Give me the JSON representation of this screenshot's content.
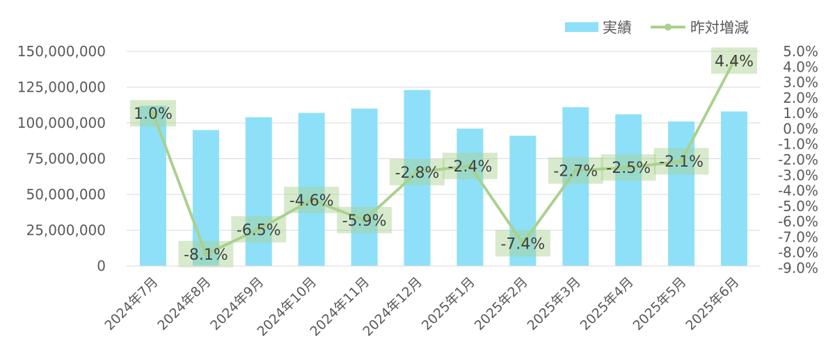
{
  "chart_data": {
    "type": "bar",
    "categories": [
      "2024年7月",
      "2024年8月",
      "2024年9月",
      "2024年10月",
      "2024年11月",
      "2024年12月",
      "2025年1月",
      "2025年2月",
      "2025年3月",
      "2025年4月",
      "2025年5月",
      "2025年6月"
    ],
    "series": [
      {
        "name": "実績",
        "type": "bar",
        "axis": "left",
        "values": [
          112000000,
          95000000,
          104000000,
          107000000,
          110000000,
          123000000,
          96000000,
          91000000,
          111000000,
          106000000,
          101000000,
          108000000
        ],
        "color": "#8EE0F8"
      },
      {
        "name": "昨対増減",
        "type": "line",
        "axis": "right",
        "values": [
          1.0,
          -8.1,
          -6.5,
          -4.6,
          -5.9,
          -2.8,
          -2.4,
          -7.4,
          -2.7,
          -2.5,
          -2.1,
          4.4
        ],
        "labels": [
          "1.0%",
          "-8.1%",
          "-6.5%",
          "-4.6%",
          "-5.9%",
          "-2.8%",
          "-2.4%",
          "-7.4%",
          "-2.7%",
          "-2.5%",
          "-2.1%",
          "4.4%"
        ],
        "color": "#A9D18E"
      }
    ],
    "y_left": {
      "ylim": [
        0,
        150000000
      ],
      "ticks": [
        0,
        25000000,
        50000000,
        75000000,
        100000000,
        125000000,
        150000000
      ],
      "tick_labels": [
        "0",
        "25,000,000",
        "50,000,000",
        "75,000,000",
        "100,000,000",
        "125,000,000",
        "150,000,000"
      ]
    },
    "y_right": {
      "ylim": [
        -9.0,
        5.0
      ],
      "ticks": [
        5,
        4,
        3,
        2,
        1,
        0,
        -1,
        -2,
        -3,
        -4,
        -5,
        -6,
        -7,
        -8,
        -9
      ],
      "tick_labels": [
        "5.0%",
        "4.0%",
        "3.0%",
        "2.0%",
        "1.0%",
        "0.0%",
        "-1.0%",
        "-2.0%",
        "-3.0%",
        "-4.0%",
        "-5.0%",
        "-6.0%",
        "-7.0%",
        "-8.0%",
        "-9.0%"
      ]
    },
    "legend": {
      "placement": "top-right",
      "items": [
        "実績",
        "昨対増減"
      ]
    },
    "grid": true
  }
}
